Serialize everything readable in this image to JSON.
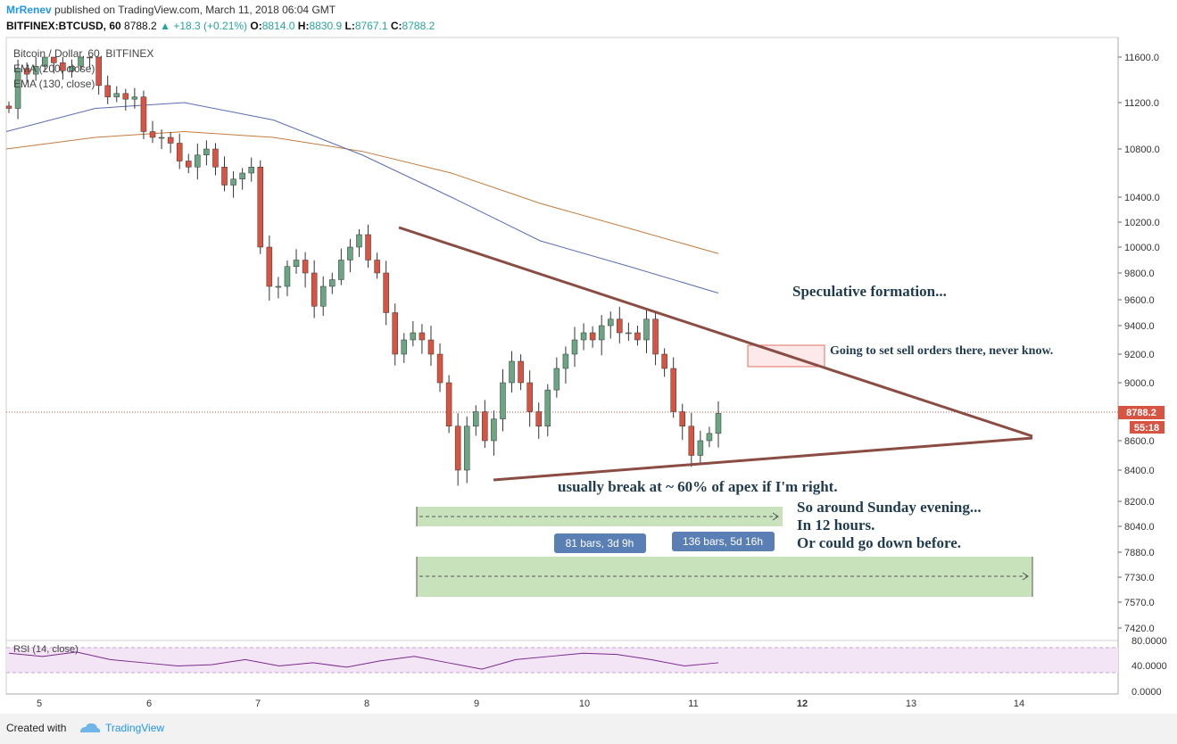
{
  "header": {
    "user": "MrRenev",
    "published": "published on TradingView.com, March 11, 2018 06:04 GMT",
    "symbol": "BITFINEX:BTCUSD, 60",
    "last": "8788.2",
    "change": "+18.3 (+0.21%)",
    "o_label": "O:",
    "o": "8814.0",
    "h_label": "H:",
    "h": "8830.9",
    "l_label": "L:",
    "l": "8767.1",
    "c_label": "C:",
    "c": "8788.2"
  },
  "legend": {
    "title": "Bitcoin / Dollar, 60, BITFINEX",
    "ema1": "EMA (200, close)",
    "ema2": "EMA (130, close)"
  },
  "rsi_label": "RSI (14, close)",
  "price_badge": "8788.2",
  "countdown_badge": "55:18",
  "colors": {
    "up": "#6ba583",
    "down": "#d75442",
    "ema130": "#5b6bb5",
    "ema200": "#c57b3c",
    "trend": "#8b4d43",
    "range_fill": "#b5d9a4",
    "rsi_fill": "#f3e5f5",
    "rsi_line": "#7b2a8f",
    "badge": "#5a7fb5"
  },
  "annotations": {
    "speculative": "Speculative formation...",
    "sell": "Going to set sell orders there, never know.",
    "apex": "usually break at ~ 60% of apex if I'm right.",
    "sunday1": "So around Sunday evening...",
    "sunday2": "In 12 hours.",
    "sunday3": "Or could go down before.",
    "bars1": "81 bars, 3d 9h",
    "bars2": "136 bars, 5d 16h"
  },
  "footer": {
    "created": "Created with",
    "brand": "TradingView"
  },
  "chart_data": {
    "type": "candlestick",
    "x_ticks": [
      "5",
      "6",
      "7",
      "8",
      "9",
      "10",
      "11",
      "12",
      "13",
      "14"
    ],
    "y_ticks": [
      "11600.0",
      "11200.0",
      "10800.0",
      "10400.0",
      "10200.0",
      "10000.0",
      "9800.0",
      "9600.0",
      "9400.0",
      "9200.0",
      "9000.0",
      "8600.0",
      "8400.0",
      "8200.0",
      "8040.0",
      "7880.0",
      "7730.0",
      "7570.0",
      "7420.0"
    ],
    "rsi_ticks": [
      "80.0000",
      "40.0000",
      "0.0000"
    ],
    "candles_close_approx": [
      11150,
      11500,
      11450,
      11520,
      11600,
      11550,
      11480,
      11520,
      11650,
      11600,
      11350,
      11250,
      11280,
      11230,
      11250,
      10950,
      10900,
      10900,
      10850,
      10700,
      10650,
      10750,
      10800,
      10650,
      10500,
      10550,
      10600,
      10650,
      10000,
      9700,
      9700,
      9850,
      9900,
      9800,
      9550,
      9700,
      9750,
      9900,
      10000,
      10100,
      9900,
      9800,
      9500,
      9200,
      9300,
      9350,
      9300,
      9200,
      9000,
      8700,
      8400,
      8700,
      8800,
      8600,
      8750,
      9000,
      9150,
      9000,
      8800,
      8700,
      8950,
      9100,
      9200,
      9300,
      9350,
      9300,
      9400,
      9450,
      9350,
      9350,
      9300,
      9450,
      9200,
      9100,
      8800,
      8700,
      8500,
      8600,
      8650,
      8788.2
    ],
    "ema200_approx": [
      10800,
      10900,
      10950,
      10900,
      10780,
      10600,
      10350,
      10150,
      9950
    ],
    "ema130_approx": [
      10950,
      11150,
      11200,
      11050,
      10750,
      10400,
      10050,
      9850,
      9650
    ],
    "rsi_approx": [
      60,
      55,
      62,
      50,
      45,
      40,
      42,
      50,
      40,
      45,
      38,
      48,
      55,
      45,
      35,
      50,
      55,
      60,
      58,
      50,
      40,
      45
    ]
  }
}
